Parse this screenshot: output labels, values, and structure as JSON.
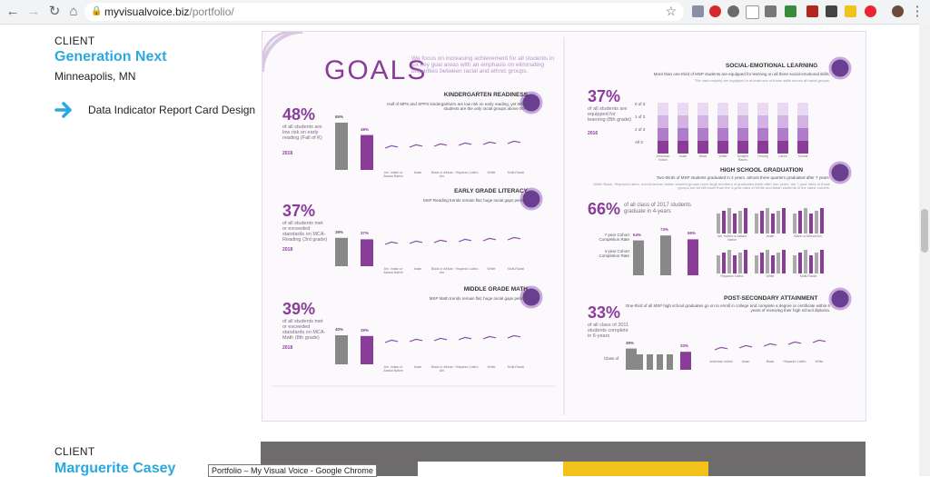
{
  "browser": {
    "url_domain": "myvisualvoice.biz",
    "url_path": "/portfolio/",
    "tooltip": "Portfolio – My Visual Voice - Google Chrome"
  },
  "entries": [
    {
      "client_label": "CLIENT",
      "client_name": "Generation Next",
      "location": "Minneapolis, MN",
      "project": "Data Indicator Report Card Design"
    },
    {
      "client_label": "CLIENT",
      "client_name": "Marguerite Casey"
    }
  ],
  "poster": {
    "goals_title": "GOALS",
    "goals_intro": "We focus on increasing achievement for all students in six key goal areas with an emphasis on eliminating disparities between racial and ethnic groups.",
    "sections_left": [
      {
        "title": "KINDERGARTEN READINESS",
        "pct": "48%",
        "desc": "of all students are low risk on early reading (Fall of K)",
        "year": "2018",
        "bars": [
          65,
          48
        ],
        "groups": [
          "Am. Indian or Alaska Native",
          "Asian",
          "Black or African Am.",
          "Hispanic/ Latino",
          "White",
          "Multi-Racial"
        ],
        "sub": "Half of MPS and SPPS kindergartners are low risk on early reading, yet White students are the only racial groups above 50%",
        "icon": "backpack-icon"
      },
      {
        "title": "EARLY GRADE LITERACY",
        "pct": "37%",
        "desc": "of all students met or exceeded standards on MCA-Reading (3rd grade)",
        "year": "2018",
        "bars": [
          39,
          37
        ],
        "groups": [
          "Am. Indian or Alaska Native",
          "Asian",
          "Black or African Am.",
          "Hispanic/ Latino",
          "White",
          "Multi-Racial"
        ],
        "sub": "MSP Reading trends remain flat; huge racial gaps persist.",
        "icon": "book-icon"
      },
      {
        "title": "MIDDLE GRADE MATH",
        "pct": "39%",
        "desc": "of all students met or exceeded standards on MCA-Math (8th grade)",
        "year": "2018",
        "bars": [
          40,
          39
        ],
        "groups": [
          "Am. Indian or Alaska Native",
          "Asian",
          "Black or African Am.",
          "Hispanic/ Latino",
          "White",
          "Multi-Racial"
        ],
        "sub": "MSP Math trends remain flat; huge racial gaps persist.",
        "icon": "calculator-icon"
      }
    ],
    "sections_right": [
      {
        "title": "SOCIAL-EMOTIONAL LEARNING",
        "pct": "37%",
        "desc": "of all students are equipped for learning (8th grade)",
        "year": "2016",
        "sub": "More than one-third of MSP students are equipped for learning on all three social-emotional skills.",
        "subdim": "The vast majority are equipped in at least one of those skills across all racial groups.",
        "scale": [
          "0 of 3",
          "1 of 3",
          "2 of 3",
          "All 3"
        ],
        "groups": [
          "American Indian",
          "Asian",
          "Black",
          "White",
          "Multiple Races",
          "Hmong",
          "Latino",
          "Somali"
        ],
        "icon": "head-icon"
      },
      {
        "title": "HIGH SCHOOL GRADUATION",
        "pct": "66%",
        "desc": "of all class of 2017 students graduate in 4-years",
        "sub": "Two-thirds of MSP students graduated in 4 years, almost three quarters graduated after 7 years.",
        "subdim": "While Black, Hispanic/Latino, and American Indian student groups have large numbers of graduates finish after four years, the 7-year rates of those groups are all still lower than the 4-year rates of White and Asian students in the same cohorts.",
        "rate7": "7-year Cohort Completion Rate",
        "rate4": "4-year Cohort Completion Rate",
        "bars": [
          64,
          73,
          66
        ],
        "groups_a": [
          "Am. Indian or Alaska Native",
          "Asian",
          "Black or African Am."
        ],
        "groups_b": [
          "Hispanic/ Latino",
          "White",
          "Multi-Racial"
        ],
        "icon": "graduation-cap-icon"
      },
      {
        "title": "POST-SECONDARY ATTAINMENT",
        "pct": "33%",
        "desc": "of all class of 2011 students complete in 6-years",
        "sub": "One-third of all MSP high school graduates go on to enroll in college and complete a degree or certificate within 6 years of receiving their high school diploma.",
        "classof": "Class of",
        "bars": [
          39,
          33
        ],
        "groups": [
          "American Indian",
          "Asian",
          "Black",
          "Hispanic/ Latino",
          "White"
        ],
        "icon": "certificate-icon"
      }
    ]
  }
}
